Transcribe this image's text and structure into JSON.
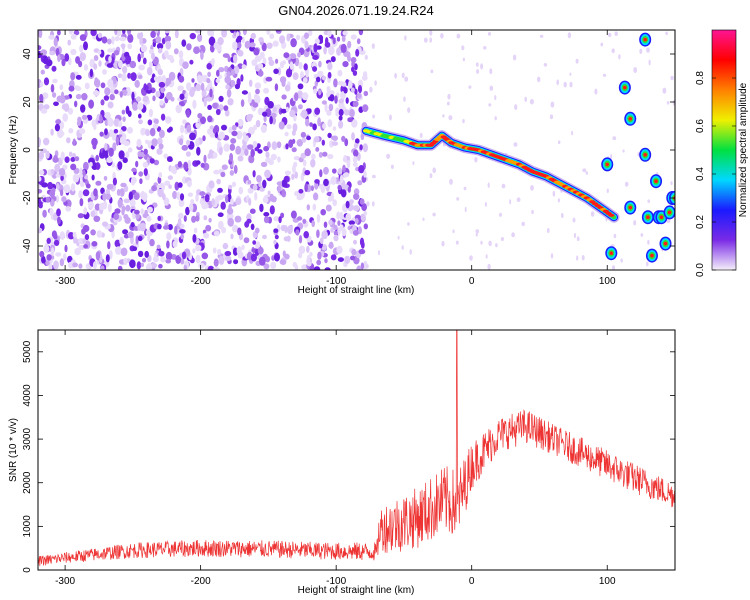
{
  "figure_title": "GN04.2026.071.19.24.R24",
  "chart_data": [
    {
      "type": "heatmap",
      "xlabel": "Height of straight line (km)",
      "ylabel": "Frequency (Hz)",
      "xlim": [
        -320,
        150
      ],
      "ylim": [
        -50,
        50
      ],
      "xticks": [
        -300,
        -200,
        -100,
        0,
        100
      ],
      "yticks": [
        -40,
        -20,
        0,
        20,
        40
      ],
      "grid": false,
      "noise_region_x": [
        -320,
        -78
      ],
      "colorbar": {
        "label": "Normalized spectral amplitude",
        "range": [
          0,
          1
        ],
        "ticks": [
          0.0,
          0.2,
          0.4,
          0.6,
          0.8
        ],
        "tick_labels": [
          "0.0",
          "0.2",
          "0.4",
          "0.6",
          "0.8"
        ],
        "colormap": [
          "#f5f0fa",
          "#7a2be6",
          "#1a1aff",
          "#00d8ff",
          "#00e040",
          "#f0f000",
          "#ff8000",
          "#ff0000",
          "#ff1493"
        ]
      },
      "track": {
        "name": "main track",
        "x": [
          -78,
          -65,
          -50,
          -40,
          -30,
          -22,
          -15,
          -5,
          5,
          15,
          25,
          35,
          45,
          55,
          65,
          75,
          85,
          95,
          105
        ],
        "y": [
          8,
          6,
          4,
          2,
          2,
          6,
          3,
          1,
          0,
          -2,
          -4,
          -6,
          -9,
          -11,
          -14,
          -17,
          -20,
          -24,
          -28
        ]
      },
      "blobs": {
        "x": [
          100,
          103,
          113,
          117,
          117,
          128,
          128,
          130,
          133,
          136,
          138,
          140,
          143,
          146,
          148,
          150
        ],
        "y": [
          -6,
          -43,
          26,
          13,
          -24,
          46,
          -2,
          -28,
          -44,
          -13,
          -28,
          -28,
          -39,
          -26,
          -20,
          -20
        ]
      }
    },
    {
      "type": "line",
      "xlabel": "Height of straight line (km)",
      "ylabel": "SNR (10 * v/v)",
      "xlim": [
        -320,
        150
      ],
      "ylim": [
        0,
        5500
      ],
      "xticks": [
        -300,
        -200,
        -100,
        0,
        100
      ],
      "yticks": [
        0,
        1000,
        2000,
        3000,
        4000,
        5000
      ],
      "grid": false,
      "series": [
        {
          "color": "#ee3333",
          "envelope_x": [
            -320,
            -300,
            -250,
            -200,
            -150,
            -100,
            -70,
            -68,
            -60,
            -40,
            -20,
            -10,
            0,
            20,
            40,
            60,
            80,
            100,
            120,
            150
          ],
          "envelope_y": [
            200,
            280,
            450,
            500,
            480,
            430,
            420,
            950,
            1000,
            1200,
            1600,
            1500,
            2400,
            3100,
            3300,
            3000,
            2700,
            2400,
            2100,
            1700
          ],
          "noise_amplitude_y": [
            120,
            130,
            180,
            200,
            200,
            200,
            220,
            500,
            650,
            700,
            800,
            800,
            550,
            400,
            400,
            350,
            350,
            350,
            350,
            300
          ],
          "spike": {
            "x": -11,
            "y": 5500
          }
        }
      ]
    }
  ]
}
